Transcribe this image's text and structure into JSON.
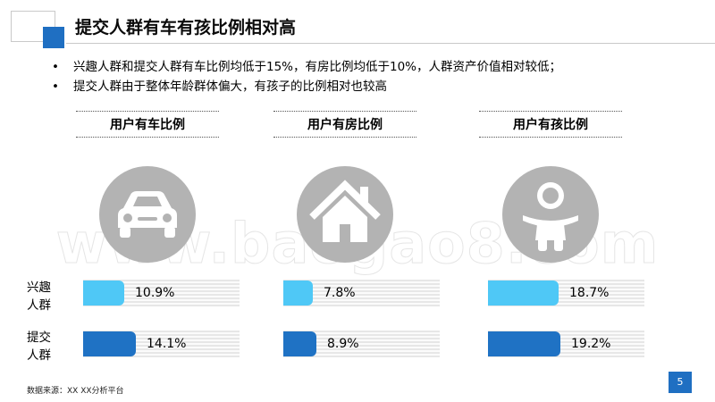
{
  "title": "提交人群有车有孩比例相对高",
  "bullets": [
    "兴趣人群和提交人群有车比例均低于15%，有房比例均低于10%，人群资产价值相对较低；",
    "提交人群由于整体年龄群体偏大，有孩子的比例相对也较高"
  ],
  "colors": {
    "accent": "#1f6fc2",
    "interest_bar": "#4fc8f6",
    "submit_bar": "#1f72c4",
    "icon_gray": "#b3b3b3"
  },
  "icons": [
    "car-icon",
    "house-icon",
    "baby-icon"
  ],
  "chart_data": {
    "type": "bar",
    "orientation": "horizontal",
    "categories": [
      "用户有车比例",
      "用户有房比例",
      "用户有孩比例"
    ],
    "series": [
      {
        "name": "兴趣人群",
        "values": [
          10.9,
          7.8,
          18.7
        ],
        "labels": [
          "10.9%",
          "7.8%",
          "18.7%"
        ]
      },
      {
        "name": "提交人群",
        "values": [
          14.1,
          8.9,
          19.2
        ],
        "labels": [
          "14.1%",
          "8.9%",
          "19.2%"
        ]
      }
    ],
    "unit": "%"
  },
  "row_labels": [
    "兴趣\n人群",
    "提交\n人群"
  ],
  "watermark": "www.baogao8.com",
  "source": "数据来源：XX XX分析平台",
  "page_number": "5"
}
